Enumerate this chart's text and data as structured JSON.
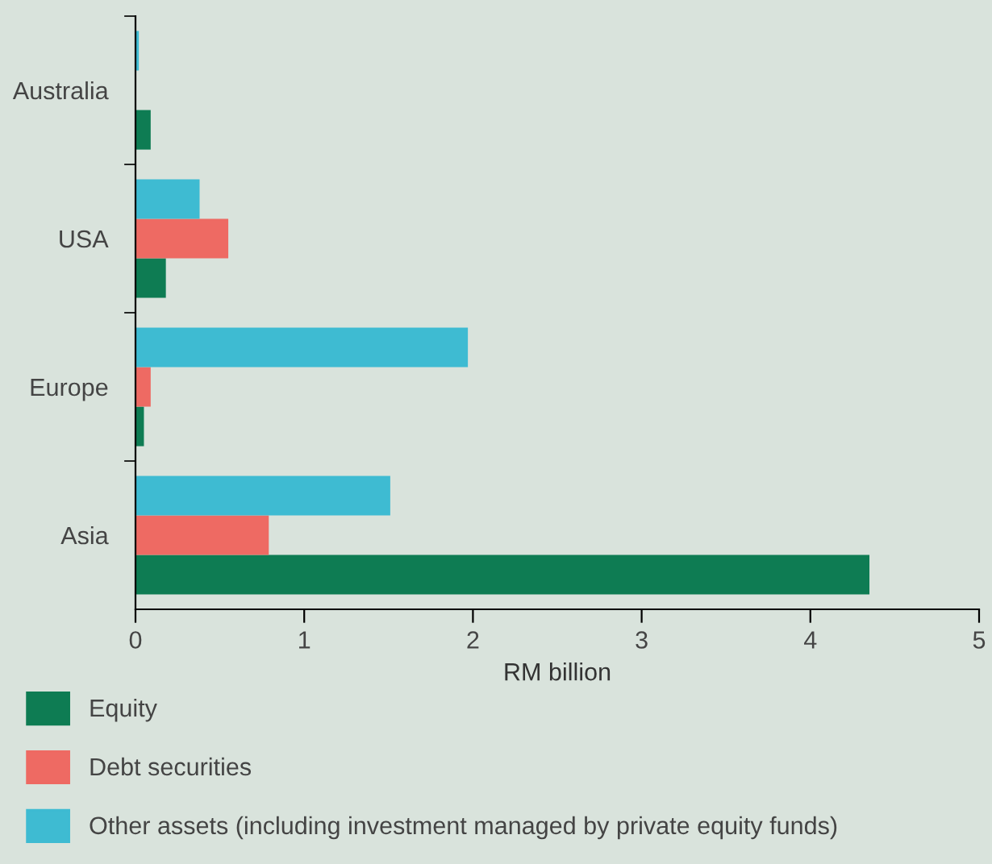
{
  "chart_data": {
    "type": "bar",
    "orientation": "horizontal",
    "xlabel": "RM billion",
    "categories": [
      "Australia",
      "USA",
      "Europe",
      "Asia"
    ],
    "series": [
      {
        "name": "Equity",
        "color": "#0e7c53",
        "values": [
          0.09,
          0.18,
          0.05,
          4.35
        ]
      },
      {
        "name": "Debt securities",
        "color": "#ee6a63",
        "values": [
          null,
          0.55,
          0.09,
          0.79
        ]
      },
      {
        "name": "Other assets (including investment managed by private equity funds)",
        "color": "#3ebbd2",
        "values": [
          0.02,
          0.38,
          1.97,
          1.51
        ]
      }
    ],
    "xlim": [
      0,
      5
    ],
    "xticks": [
      0,
      1,
      2,
      3,
      4,
      5
    ],
    "grid": false,
    "legend": "bottom left"
  }
}
